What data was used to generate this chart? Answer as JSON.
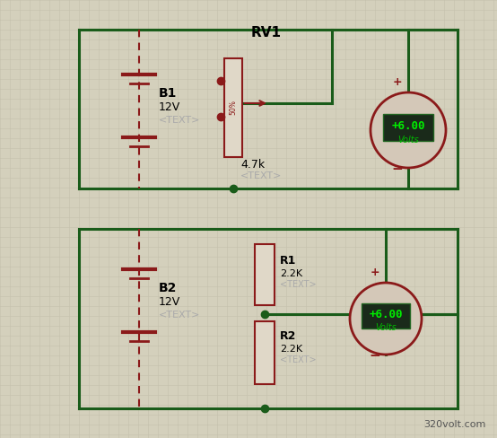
{
  "bg_color": "#d4d0bc",
  "grid_color": "#c4c0ac",
  "wire_color": "#1a5c1a",
  "component_color": "#8b1a1a",
  "dark_red": "#6b0000",
  "gray_text_color": "#aaaaaa",
  "watermark": "320volt.com",
  "watermark_color": "#555555",
  "circuit1": {
    "battery_label": "B1",
    "battery_value": "12V",
    "battery_text": "<TEXT>",
    "pot_label": "RV1",
    "pot_value": "4.7k",
    "pot_text": "<TEXT>",
    "meter_value": "+6.00",
    "meter_unit": "Volts"
  },
  "circuit2": {
    "battery_label": "B2",
    "battery_value": "12V",
    "battery_text": "<TEXT>",
    "r1_label": "R1",
    "r1_value": "2.2K",
    "r1_text": "<TEXT>",
    "r2_label": "R2",
    "r2_value": "2.2K",
    "r2_text": "<TEXT>",
    "meter_value": "+6.00",
    "meter_unit": "Volts"
  }
}
